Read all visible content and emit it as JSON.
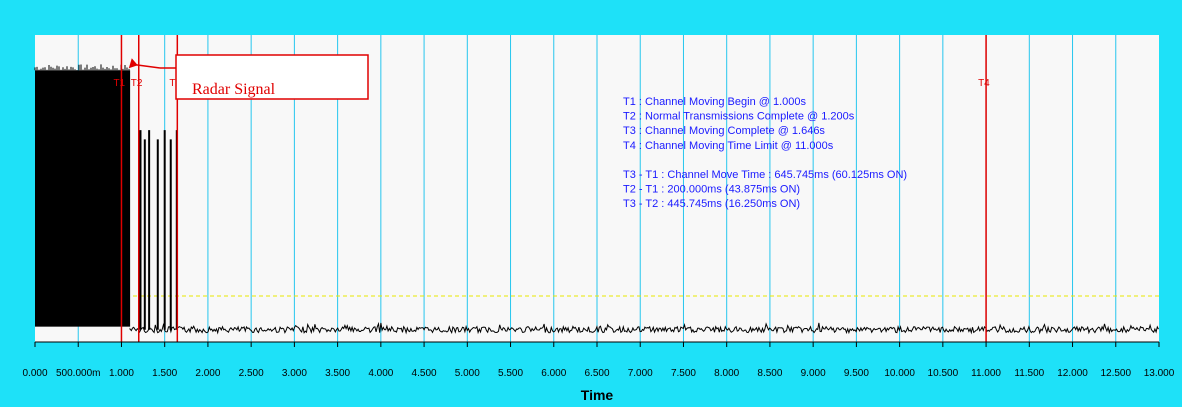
{
  "chart_data": {
    "type": "line",
    "xlabel": "Time",
    "xlim": [
      0,
      13
    ],
    "ylim": [
      -1,
      1
    ],
    "grid": true,
    "x_ticks": [
      {
        "value": 0,
        "label": "0.000"
      },
      {
        "value": 0.5,
        "label": "500.000m"
      },
      {
        "value": 1,
        "label": "1.000"
      },
      {
        "value": 1.5,
        "label": "1.500"
      },
      {
        "value": 2,
        "label": "2.000"
      },
      {
        "value": 2.5,
        "label": "2.500"
      },
      {
        "value": 3,
        "label": "3.000"
      },
      {
        "value": 3.5,
        "label": "3.500"
      },
      {
        "value": 4,
        "label": "4.000"
      },
      {
        "value": 4.5,
        "label": "4.500"
      },
      {
        "value": 5,
        "label": "5.000"
      },
      {
        "value": 5.5,
        "label": "5.500"
      },
      {
        "value": 6,
        "label": "6.000"
      },
      {
        "value": 6.5,
        "label": "6.500"
      },
      {
        "value": 7,
        "label": "7.000"
      },
      {
        "value": 7.5,
        "label": "7.500"
      },
      {
        "value": 8,
        "label": "8.000"
      },
      {
        "value": 8.5,
        "label": "8.500"
      },
      {
        "value": 9,
        "label": "9.000"
      },
      {
        "value": 9.5,
        "label": "9.500"
      },
      {
        "value": 10,
        "label": "10.000"
      },
      {
        "value": 10.5,
        "label": "10.500"
      },
      {
        "value": 11,
        "label": "11.000"
      },
      {
        "value": 11.5,
        "label": "11.500"
      },
      {
        "value": 12,
        "label": "12.000"
      },
      {
        "value": 12.5,
        "label": "12.500"
      },
      {
        "value": 13,
        "label": "13.000"
      }
    ],
    "markers": [
      {
        "name": "T1",
        "label": "T1",
        "x": 1.0
      },
      {
        "name": "T2",
        "label": "T2",
        "x": 1.2
      },
      {
        "name": "T3",
        "label": "T",
        "x": 1.646
      },
      {
        "name": "T4",
        "label": "T4",
        "x": 11.0
      }
    ],
    "signal_regions": [
      {
        "type": "burst",
        "x_start": 0.0,
        "x_end": 1.1,
        "amplitude_high": 0.77,
        "amplitude_low": -0.9
      },
      {
        "type": "pulse",
        "x": 1.22,
        "amplitude_high": 0.38
      },
      {
        "type": "pulse",
        "x": 1.27,
        "amplitude_high": 0.32
      },
      {
        "type": "pulse",
        "x": 1.32,
        "amplitude_high": 0.38
      },
      {
        "type": "pulse",
        "x": 1.42,
        "amplitude_high": 0.32
      },
      {
        "type": "pulse",
        "x": 1.5,
        "amplitude_high": 0.38
      },
      {
        "type": "pulse",
        "x": 1.57,
        "amplitude_high": 0.32
      },
      {
        "type": "pulse",
        "x": 1.64,
        "amplitude_high": 0.38
      },
      {
        "type": "noise_floor",
        "x_start": 1.1,
        "x_end": 13.0,
        "level": -0.92
      }
    ],
    "threshold": {
      "y": -0.7,
      "color": "#e8e800"
    },
    "annotations": [
      "T1 : Channel Moving Begin @ 1.000s",
      "T2 : Normal Transmissions Complete @ 1.200s",
      "T3 : Channel Moving Complete @ 1.646s",
      "T4 : Channel Moving Time Limit @ 11.000s",
      "",
      "T3 - T1 : Channel Move Time : 645.745ms (60.125ms ON)",
      "T2 - T1 : 200.000ms (43.875ms ON)",
      "T3 - T2 : 445.745ms (16.250ms ON)"
    ],
    "callout": {
      "text": "Radar Signal",
      "target_x": 1.05,
      "target_y": 0.77
    }
  },
  "colors": {
    "frame": "#1ee1f8",
    "plot_bg": "#f8f8f8",
    "grid": "#26c6ee",
    "marker": "#e00000",
    "signal": "#000000",
    "annotation_text": "#1a1aff"
  }
}
